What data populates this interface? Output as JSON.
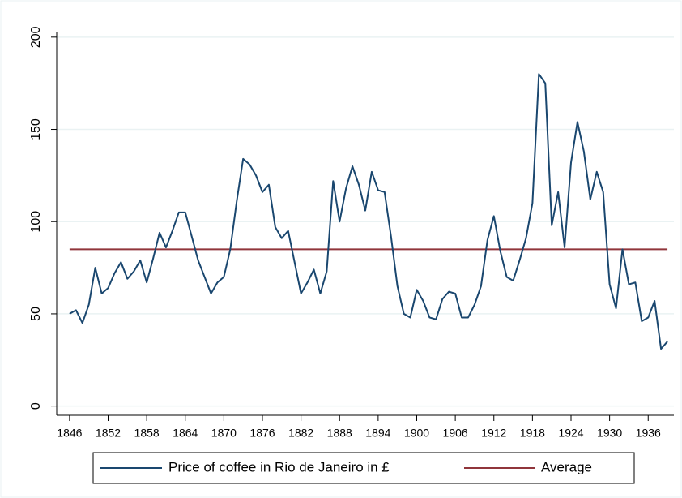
{
  "chart_data": {
    "type": "line",
    "x": [
      1846,
      1847,
      1848,
      1849,
      1850,
      1851,
      1852,
      1853,
      1854,
      1855,
      1856,
      1857,
      1858,
      1859,
      1860,
      1861,
      1862,
      1863,
      1864,
      1865,
      1866,
      1867,
      1868,
      1869,
      1870,
      1871,
      1872,
      1873,
      1874,
      1875,
      1876,
      1877,
      1878,
      1879,
      1880,
      1881,
      1882,
      1883,
      1884,
      1885,
      1886,
      1887,
      1888,
      1889,
      1890,
      1891,
      1892,
      1893,
      1894,
      1895,
      1896,
      1897,
      1898,
      1899,
      1900,
      1901,
      1902,
      1903,
      1904,
      1905,
      1906,
      1907,
      1908,
      1909,
      1910,
      1911,
      1912,
      1913,
      1914,
      1915,
      1916,
      1917,
      1918,
      1919,
      1920,
      1921,
      1922,
      1923,
      1924,
      1925,
      1926,
      1927,
      1928,
      1929,
      1930,
      1931,
      1932,
      1933,
      1934,
      1935,
      1936,
      1937,
      1938,
      1939
    ],
    "series": [
      {
        "name": "Price of coffee in Rio de Janeiro in £",
        "color": "#1a476f",
        "values": [
          50,
          52,
          45,
          55,
          75,
          61,
          64,
          72,
          78,
          69,
          73,
          79,
          67,
          80,
          94,
          86,
          95,
          105,
          105,
          92,
          79,
          70,
          61,
          67,
          70,
          85,
          111,
          134,
          131,
          125,
          116,
          120,
          97,
          91,
          95,
          78,
          61,
          67,
          74,
          61,
          73,
          122,
          100,
          118,
          130,
          120,
          106,
          127,
          117,
          116,
          92,
          65,
          50,
          48,
          63,
          57,
          48,
          47,
          58,
          62,
          61,
          48,
          48,
          55,
          65,
          90,
          103,
          84,
          70,
          68,
          79,
          91,
          110,
          180,
          175,
          98,
          116,
          86,
          132,
          154,
          138,
          112,
          127,
          116,
          66,
          53,
          85,
          66,
          67,
          46,
          48,
          57,
          31,
          35
        ]
      }
    ],
    "reference_line": {
      "name": "Average",
      "color": "#90353b",
      "value": 85
    },
    "xlim": [
      1844,
      1940
    ],
    "xticks": [
      1846,
      1852,
      1858,
      1864,
      1870,
      1876,
      1882,
      1888,
      1894,
      1900,
      1906,
      1912,
      1918,
      1924,
      1930,
      1936
    ],
    "ylim": [
      -5,
      203
    ],
    "yticks": [
      0,
      50,
      100,
      150,
      200
    ],
    "grid": true
  }
}
